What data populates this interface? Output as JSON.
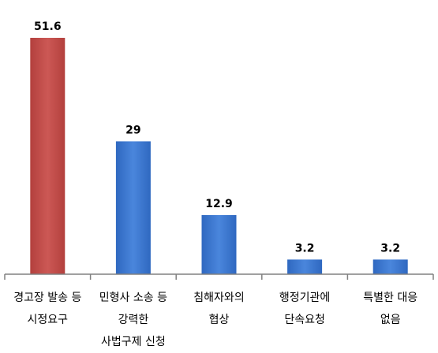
{
  "chart_data": {
    "type": "bar",
    "title": "",
    "xlabel": "",
    "ylabel": "",
    "ylim": [
      0,
      56
    ],
    "grid": false,
    "legend": "none",
    "categories": [
      [
        "경고장 발송 등",
        "시정요구"
      ],
      [
        "민형사 소송 등",
        "강력한",
        "사법구제 신청"
      ],
      [
        "침해자와의",
        "협상"
      ],
      [
        "행정기관에",
        "단속요청"
      ],
      [
        "특별한 대응",
        "없음"
      ]
    ],
    "values": [
      51.6,
      29,
      12.9,
      3.2,
      3.2
    ],
    "value_labels": [
      "51.6",
      "29",
      "12.9",
      "3.2",
      "3.2"
    ],
    "bar_colors": [
      "#C0504D",
      "#3C78D0",
      "#3C78D0",
      "#3C78D0",
      "#3C78D0"
    ]
  }
}
